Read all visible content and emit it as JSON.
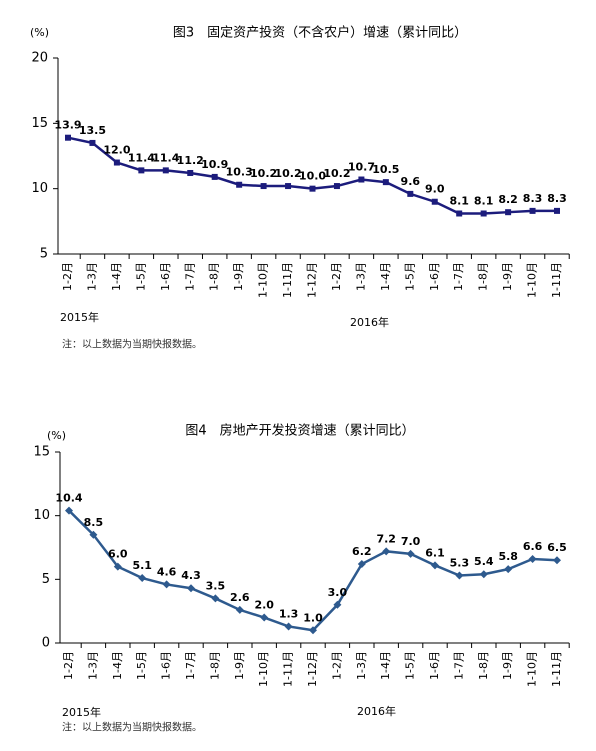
{
  "chart_data": [
    {
      "type": "line",
      "title": "图3　固定资产投资（不含农户）增速（累计同比）",
      "y_label": "(%)",
      "categories": [
        "1-2月",
        "1-3月",
        "1-4月",
        "1-5月",
        "1-6月",
        "1-7月",
        "1-8月",
        "1-9月",
        "1-10月",
        "1-11月",
        "1-12月",
        "1-2月",
        "1-3月",
        "1-4月",
        "1-5月",
        "1-6月",
        "1-7月",
        "1-8月",
        "1-9月",
        "1-10月",
        "1-11月"
      ],
      "values": [
        13.9,
        13.5,
        12.0,
        11.4,
        11.4,
        11.2,
        10.9,
        10.3,
        10.2,
        10.2,
        10.0,
        10.2,
        10.7,
        10.5,
        9.6,
        9.0,
        8.1,
        8.1,
        8.2,
        8.3,
        8.3
      ],
      "value_labels": [
        "13.9",
        "13.5",
        "12.0",
        "11.4",
        "11.4",
        "11.2",
        "10.9",
        "10.3",
        "10.2",
        "10.2",
        "10.0",
        "10.2",
        "10.7",
        "10.5",
        "9.6",
        "9.0",
        "8.1",
        "8.1",
        "8.2",
        "8.3",
        "8.3"
      ],
      "color": "#1c1c7c",
      "marker": "square",
      "ylim": [
        5,
        20
      ],
      "yticks": [
        5,
        10,
        15,
        20
      ],
      "groups": [
        "2015年",
        "2016年"
      ],
      "note": "注：以上数据为当期快报数据。"
    },
    {
      "type": "line",
      "title": "图4　房地产开发投资增速（累计同比）",
      "y_label": "(%)",
      "categories": [
        "1-2月",
        "1-3月",
        "1-4月",
        "1-5月",
        "1-6月",
        "1-7月",
        "1-8月",
        "1-9月",
        "1-10月",
        "1-11月",
        "1-12月",
        "1-2月",
        "1-3月",
        "1-4月",
        "1-5月",
        "1-6月",
        "1-7月",
        "1-8月",
        "1-9月",
        "1-10月",
        "1-11月"
      ],
      "values": [
        10.4,
        8.5,
        6.0,
        5.1,
        4.6,
        4.3,
        3.5,
        2.6,
        2.0,
        1.3,
        1.0,
        3.0,
        6.2,
        7.2,
        7.0,
        6.1,
        5.3,
        5.4,
        5.8,
        6.6,
        6.5
      ],
      "value_labels": [
        "10.4",
        "8.5",
        "6.0",
        "5.1",
        "4.6",
        "4.3",
        "3.5",
        "2.6",
        "2.0",
        "1.3",
        "1.0",
        "3.0",
        "6.2",
        "7.2",
        "7.0",
        "6.1",
        "5.3",
        "5.4",
        "5.8",
        "6.6",
        "6.5"
      ],
      "color": "#2e5a8e",
      "marker": "diamond",
      "ylim": [
        0,
        15
      ],
      "yticks": [
        0,
        5,
        10,
        15
      ],
      "groups": [
        "2015年",
        "2016年"
      ],
      "note": "注：以上数据为当期快报数据。"
    }
  ]
}
